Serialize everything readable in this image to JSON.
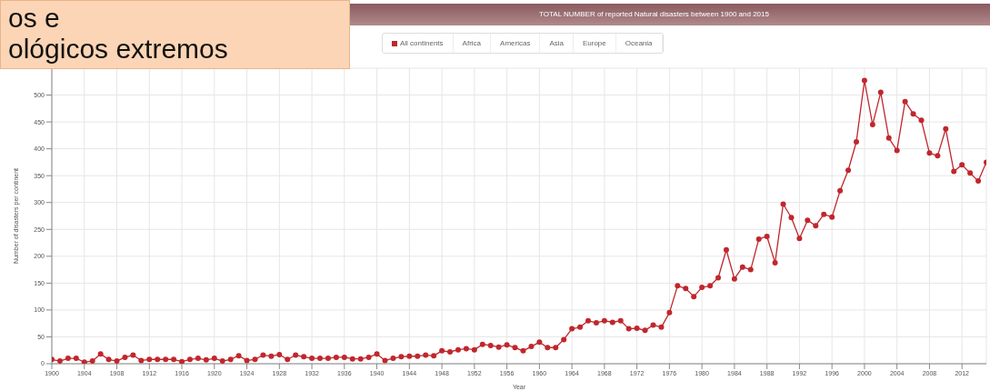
{
  "chart_data": {
    "type": "line",
    "title": "TOTAL NUMBER of reported Natural disasters between 1900 and 2015",
    "xlabel": "Year",
    "ylabel": "Number of disasters per continent",
    "annotations": [
      "os e",
      "ológicos extremos",
      "Africa",
      "Americas",
      "Asia",
      "Europe",
      "Oceania"
    ],
    "x": [
      1900,
      1901,
      1902,
      1903,
      1904,
      1905,
      1906,
      1907,
      1908,
      1909,
      1910,
      1911,
      1912,
      1913,
      1914,
      1915,
      1916,
      1917,
      1918,
      1919,
      1920,
      1921,
      1922,
      1923,
      1924,
      1925,
      1926,
      1927,
      1928,
      1929,
      1930,
      1931,
      1932,
      1933,
      1934,
      1935,
      1936,
      1937,
      1938,
      1939,
      1940,
      1941,
      1942,
      1943,
      1944,
      1945,
      1946,
      1947,
      1948,
      1949,
      1950,
      1951,
      1952,
      1953,
      1954,
      1955,
      1956,
      1957,
      1958,
      1959,
      1960,
      1961,
      1962,
      1963,
      1964,
      1965,
      1966,
      1967,
      1968,
      1969,
      1970,
      1971,
      1972,
      1973,
      1974,
      1975,
      1976,
      1977,
      1978,
      1979,
      1980,
      1981,
      1982,
      1983,
      1984,
      1985,
      1986,
      1987,
      1988,
      1989,
      1990,
      1991,
      1992,
      1993,
      1994,
      1995,
      1996,
      1997,
      1998,
      1999,
      2000,
      2001,
      2002,
      2003,
      2004,
      2005,
      2006,
      2007,
      2008,
      2009,
      2010,
      2011,
      2012,
      2013,
      2014,
      2015
    ],
    "series": [
      {
        "name": "All continents",
        "color": "#c0272d",
        "values": [
          8,
          5,
          10,
          10,
          3,
          5,
          18,
          8,
          5,
          12,
          16,
          6,
          8,
          8,
          8,
          8,
          4,
          8,
          10,
          7,
          10,
          5,
          8,
          15,
          6,
          8,
          16,
          14,
          17,
          8,
          16,
          13,
          10,
          10,
          10,
          12,
          12,
          9,
          9,
          12,
          18,
          6,
          10,
          13,
          14,
          14,
          16,
          15,
          24,
          22,
          26,
          28,
          26,
          36,
          34,
          31,
          35,
          30,
          24,
          32,
          40,
          30,
          30,
          45,
          65,
          68,
          80,
          76,
          80,
          77,
          80,
          65,
          66,
          62,
          72,
          68,
          95,
          145,
          140,
          125,
          142,
          145,
          160,
          212,
          158,
          180,
          175,
          232,
          237,
          188,
          297,
          272,
          233,
          267,
          257,
          278,
          273,
          322,
          360,
          413,
          527,
          445,
          505,
          420,
          397,
          488,
          465,
          453,
          392,
          387,
          437,
          358,
          370,
          355,
          340,
          375
        ]
      }
    ],
    "xlim": [
      1900,
      2015
    ],
    "xticks": [
      1900,
      1904,
      1908,
      1912,
      1916,
      1920,
      1924,
      1928,
      1932,
      1936,
      1940,
      1944,
      1948,
      1952,
      1956,
      1960,
      1964,
      1968,
      1972,
      1976,
      1980,
      1984,
      1988,
      1992,
      1996,
      2000,
      2004,
      2008,
      2012
    ],
    "ylim": [
      0,
      550
    ],
    "yticks": [
      0,
      50,
      100,
      150,
      200,
      250,
      300,
      350,
      400,
      450,
      500
    ],
    "grid": true,
    "legend": "top",
    "marker": "circle",
    "line_style": "solid"
  }
}
